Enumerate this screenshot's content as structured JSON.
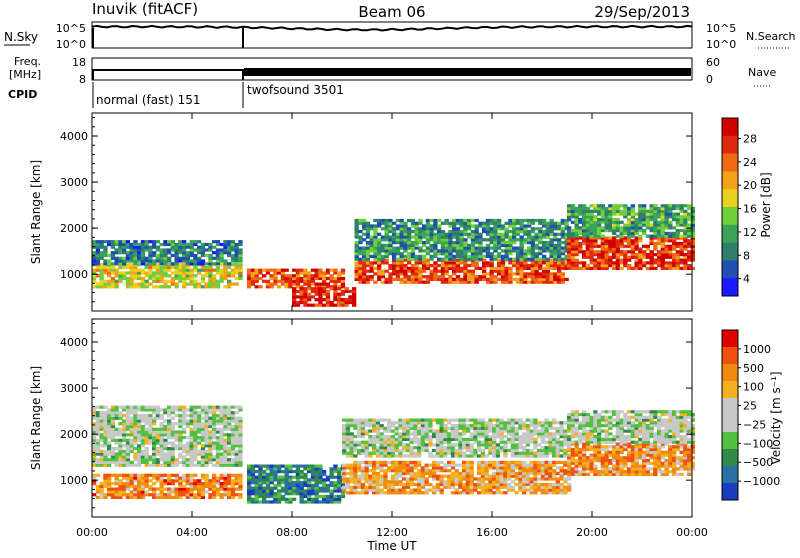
{
  "header": {
    "station": "Inuvik (fitACF)",
    "beam": "Beam 06",
    "date": "29/Sep/2013"
  },
  "top_panels": {
    "nsky_label": "N.Sky",
    "nsky_ticks": [
      "10^5",
      "10^0"
    ],
    "nsearch_label": "N.Search",
    "nsearch_ticks": [
      "10^5",
      "10^0"
    ],
    "freq_label_1": "Freq.",
    "freq_label_2": "[MHz]",
    "freq_ticks": [
      "18",
      "8"
    ],
    "nave_label": "Nave",
    "nave_ticks": [
      "60",
      "0"
    ],
    "cpid_label": "CPID",
    "cpid_modes": [
      "normal (fast) 151",
      "twofsound 3501"
    ]
  },
  "chart_data": [
    {
      "type": "heatmap",
      "name": "power",
      "ylabel": "Slant Range [km]",
      "xlabel": "",
      "x_ticks": [
        "00:00",
        "04:00",
        "08:00",
        "12:00",
        "16:00",
        "20:00",
        "00:00"
      ],
      "y_ticks": [
        "1000",
        "2000",
        "3000",
        "4000"
      ],
      "ylim": [
        200,
        4500
      ],
      "colorbar": {
        "label": "Power [dB]",
        "ticks": [
          "4",
          "8",
          "12",
          "16",
          "20",
          "24",
          "28"
        ],
        "colors": [
          "#1a1aff",
          "#1f4fb0",
          "#2f7f6a",
          "#3aa35a",
          "#6fcf3a",
          "#e8d21f",
          "#f3a21a",
          "#f06a16",
          "#e02a10",
          "#d30000"
        ]
      },
      "bands": [
        {
          "t0": 0.0,
          "t1": 6.0,
          "r0": 700,
          "r1": 1200,
          "level": 0.55
        },
        {
          "t0": 0.0,
          "t1": 6.0,
          "r0": 1200,
          "r1": 1700,
          "level": 0.25
        },
        {
          "t0": 6.2,
          "t1": 10.0,
          "r0": 700,
          "r1": 1100,
          "level": 0.8
        },
        {
          "t0": 8.0,
          "t1": 10.5,
          "r0": 300,
          "r1": 700,
          "level": 0.9
        },
        {
          "t0": 10.5,
          "t1": 19.0,
          "r0": 800,
          "r1": 1300,
          "level": 0.8
        },
        {
          "t0": 10.5,
          "t1": 19.0,
          "r0": 1300,
          "r1": 2200,
          "level": 0.3
        },
        {
          "t0": 19.0,
          "t1": 24.0,
          "r0": 1100,
          "r1": 1800,
          "level": 0.85
        },
        {
          "t0": 19.0,
          "t1": 24.0,
          "r0": 1800,
          "r1": 2500,
          "level": 0.35
        }
      ]
    },
    {
      "type": "heatmap",
      "name": "velocity",
      "ylabel": "Slant Range [km]",
      "xlabel": "Time UT",
      "x_ticks": [
        "00:00",
        "04:00",
        "08:00",
        "12:00",
        "16:00",
        "20:00",
        "00:00"
      ],
      "y_ticks": [
        "1000",
        "2000",
        "3000",
        "4000"
      ],
      "ylim": [
        200,
        4500
      ],
      "colorbar": {
        "label": "Velocity [m s⁻¹]",
        "ticks": [
          "1000",
          "500",
          "100",
          "25",
          "−25",
          "−100",
          "−500",
          "−1000"
        ],
        "colors": [
          "#1a3cc0",
          "#2a70a0",
          "#2f8a4a",
          "#55c040",
          "#c8c8c8",
          "#c8c8c8",
          "#f3b020",
          "#f08a10",
          "#f05010",
          "#e00000"
        ]
      },
      "bands": [
        {
          "t0": 0.0,
          "t1": 6.0,
          "r0": 600,
          "r1": 1100,
          "level": 0.75
        },
        {
          "t0": 0.0,
          "t1": 6.0,
          "r0": 1300,
          "r1": 2600,
          "level": 0.45
        },
        {
          "t0": 6.2,
          "t1": 10.0,
          "r0": 500,
          "r1": 1300,
          "level": 0.2
        },
        {
          "t0": 10.0,
          "t1": 19.0,
          "r0": 700,
          "r1": 1400,
          "level": 0.7
        },
        {
          "t0": 10.0,
          "t1": 19.0,
          "r0": 1500,
          "r1": 2300,
          "level": 0.45
        },
        {
          "t0": 19.0,
          "t1": 24.0,
          "r0": 1100,
          "r1": 1800,
          "level": 0.72
        },
        {
          "t0": 19.0,
          "t1": 24.0,
          "r0": 1800,
          "r1": 2500,
          "level": 0.45
        }
      ]
    }
  ]
}
